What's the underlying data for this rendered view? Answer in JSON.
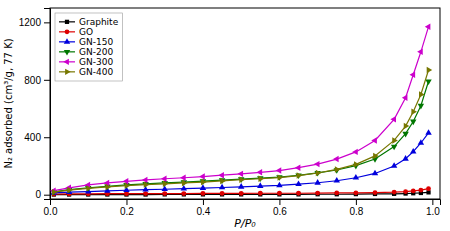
{
  "chart_data": {
    "type": "line",
    "xlabel": "P/P₀",
    "ylabel": "N₂ adsorbed (cm³/g, 77 K)",
    "xlim": [
      0.0,
      1.02
    ],
    "ylim": [
      -30,
      1300
    ],
    "xticks": [
      {
        "value": 0.0,
        "label": "0.0"
      },
      0.2,
      0.4,
      0.6,
      0.8,
      {
        "value": 1.0,
        "label": "1.0"
      }
    ],
    "yticks": [
      0,
      400,
      800,
      1200
    ],
    "grid": false,
    "legend": "upper left",
    "x": [
      0.01,
      0.05,
      0.1,
      0.15,
      0.2,
      0.25,
      0.3,
      0.35,
      0.4,
      0.45,
      0.5,
      0.55,
      0.6,
      0.65,
      0.7,
      0.75,
      0.8,
      0.85,
      0.9,
      0.93,
      0.95,
      0.97,
      0.99
    ],
    "series": [
      {
        "name": "Graphite",
        "color": "#000000",
        "marker": "square",
        "values": [
          1,
          1,
          1,
          1,
          1,
          1,
          2,
          2,
          2,
          2,
          2,
          2,
          2,
          2,
          3,
          3,
          4,
          5,
          6,
          8,
          10,
          12,
          16
        ]
      },
      {
        "name": "GO",
        "color": "#dd0000",
        "marker": "circle",
        "values": [
          4,
          5,
          6,
          7,
          7,
          8,
          8,
          8,
          9,
          9,
          9,
          10,
          10,
          10,
          11,
          12,
          13,
          15,
          18,
          22,
          26,
          32,
          42
        ]
      },
      {
        "name": "GN-150",
        "color": "#0000dd",
        "marker": "triangle-up",
        "values": [
          12,
          18,
          22,
          27,
          31,
          35,
          38,
          42,
          46,
          50,
          55,
          60,
          65,
          73,
          83,
          97,
          118,
          148,
          200,
          250,
          300,
          360,
          430
        ]
      },
      {
        "name": "GN-200",
        "color": "#007700",
        "marker": "triangle-down",
        "values": [
          20,
          35,
          48,
          58,
          68,
          75,
          82,
          88,
          94,
          101,
          108,
          115,
          123,
          135,
          152,
          172,
          202,
          248,
          335,
          425,
          510,
          620,
          790
        ]
      },
      {
        "name": "GN-300",
        "color": "#cc00cc",
        "marker": "triangle-left",
        "values": [
          28,
          48,
          68,
          82,
          93,
          103,
          111,
          118,
          126,
          136,
          145,
          156,
          168,
          188,
          213,
          248,
          298,
          378,
          525,
          675,
          835,
          995,
          1170
        ]
      },
      {
        "name": "GN-400",
        "color": "#777700",
        "marker": "triangle-right",
        "values": [
          18,
          32,
          44,
          54,
          63,
          70,
          76,
          82,
          88,
          96,
          104,
          111,
          119,
          133,
          151,
          176,
          211,
          270,
          378,
          478,
          578,
          698,
          868
        ]
      }
    ]
  }
}
